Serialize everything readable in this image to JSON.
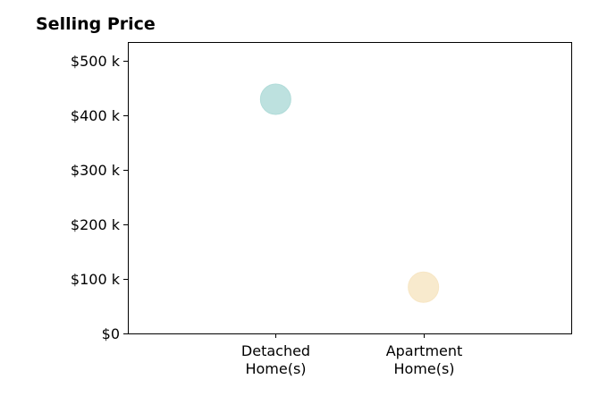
{
  "chart_data": {
    "type": "scatter",
    "title": "Selling Price",
    "xlabel": "",
    "ylabel": "",
    "categories": [
      [
        "Detached",
        "Home(s)"
      ],
      [
        "Apartment",
        "Home(s)"
      ]
    ],
    "x": [
      1,
      2
    ],
    "xlim": [
      0,
      3
    ],
    "values": [
      430000,
      85000
    ],
    "ylim": [
      0,
      535000
    ],
    "yticks": [
      0,
      100000,
      200000,
      300000,
      400000,
      500000
    ],
    "ytick_labels": [
      "$0",
      "$100 k",
      "$200 k",
      "$300 k",
      "$400 k",
      "$500 k"
    ],
    "point_colors": [
      "#b1dcd9",
      "#f7e6c4"
    ],
    "grid": false,
    "legend": "none"
  }
}
